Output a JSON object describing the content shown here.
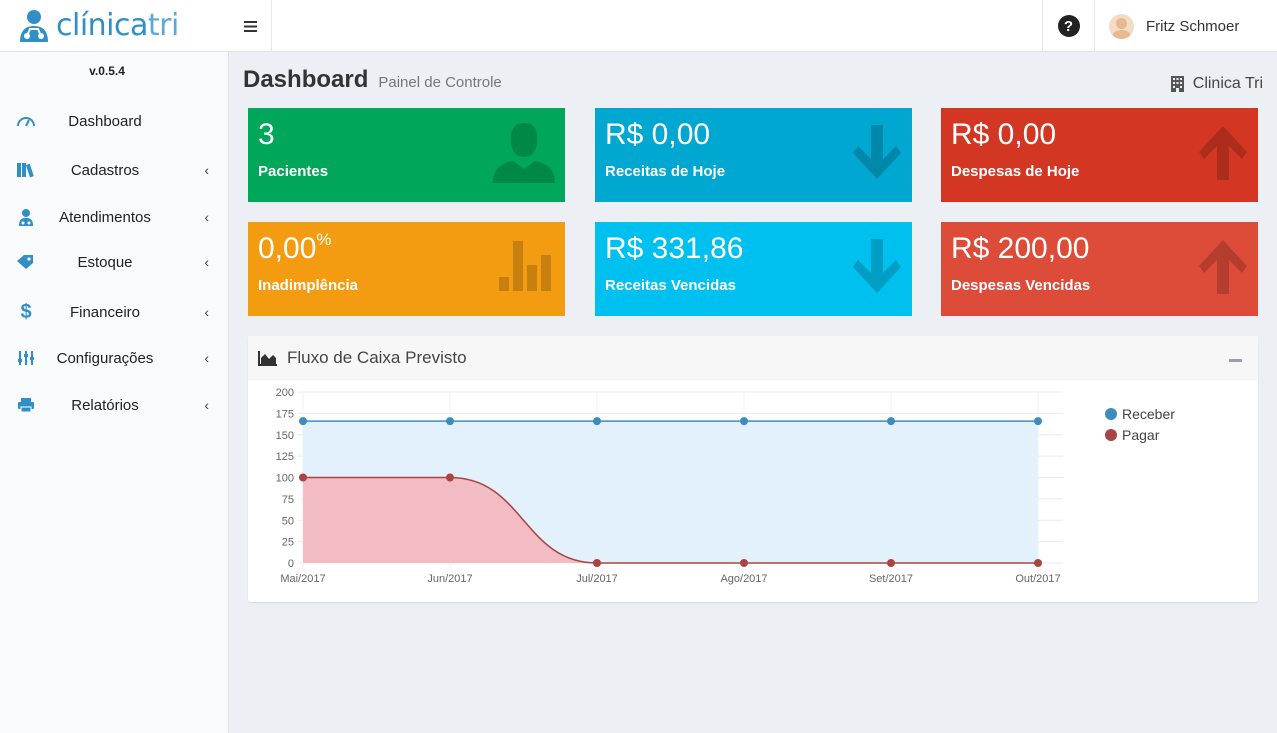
{
  "app": {
    "logo_prefix": "clínica",
    "logo_suffix": "tri",
    "version": "v.0.5.4"
  },
  "header": {
    "user_name": "Fritz Schmoer",
    "help_symbol": "?",
    "menu_icon": "hamburger-icon"
  },
  "sidebar": {
    "items": [
      {
        "label": "Dashboard",
        "icon": "speedometer-icon",
        "has_submenu": false
      },
      {
        "label": "Cadastros",
        "icon": "books-icon",
        "has_submenu": true
      },
      {
        "label": "Atendimentos",
        "icon": "doctor-icon",
        "has_submenu": true
      },
      {
        "label": "Estoque",
        "icon": "tags-icon",
        "has_submenu": true
      },
      {
        "label": "Financeiro",
        "icon": "dollar-icon",
        "has_submenu": true
      },
      {
        "label": "Configurações",
        "icon": "sliders-icon",
        "has_submenu": true
      },
      {
        "label": "Relatórios",
        "icon": "printer-icon",
        "has_submenu": true
      }
    ],
    "chevron": "‹"
  },
  "page": {
    "title": "Dashboard",
    "subtitle": "Painel de Controle",
    "clinic": "Clinica Tri"
  },
  "boxes": [
    {
      "value": "3",
      "suffix": "",
      "label": "Pacientes",
      "color": "#00a65a",
      "icon": "user-icon"
    },
    {
      "value": "R$ 0,00",
      "suffix": "",
      "label": "Receitas de Hoje",
      "color": "#00a7d0",
      "icon": "arrow-down-icon"
    },
    {
      "value": "R$ 0,00",
      "suffix": "",
      "label": "Despesas de Hoje",
      "color": "#d33724",
      "icon": "arrow-up-icon"
    },
    {
      "value": "0,00",
      "suffix": "%",
      "label": "Inadimplência",
      "color": "#f39c12",
      "icon": "bar-chart-icon"
    },
    {
      "value": "R$ 331,86",
      "suffix": "",
      "label": "Receitas Vencidas",
      "color": "#00c0ef",
      "icon": "arrow-down-icon"
    },
    {
      "value": "R$ 200,00",
      "suffix": "",
      "label": "Despesas Vencidas",
      "color": "#dd4b39",
      "icon": "arrow-up-icon"
    }
  ],
  "chart_panel": {
    "title": "Fluxo de Caixa Previsto",
    "icon": "area-chart-icon"
  },
  "chart_data": {
    "type": "area",
    "x": [
      "Mai/2017",
      "Jun/2017",
      "Jul/2017",
      "Ago/2017",
      "Set/2017",
      "Out/2017"
    ],
    "ylim": [
      0,
      200
    ],
    "yticks": [
      0,
      25,
      50,
      75,
      100,
      125,
      150,
      175,
      200
    ],
    "grid": true,
    "legend_position": "right",
    "series": [
      {
        "name": "Receber",
        "values": [
          165.93,
          165.93,
          165.93,
          165.93,
          165.93,
          165.93
        ],
        "color": "#3c8dbc",
        "fill": "#e3f1fd"
      },
      {
        "name": "Pagar",
        "values": [
          100,
          100,
          0,
          0,
          0,
          0
        ],
        "color": "#a94442",
        "fill": "#f2bcc2"
      }
    ]
  }
}
